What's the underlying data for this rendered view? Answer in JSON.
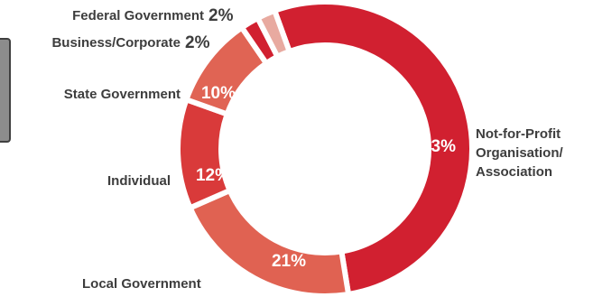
{
  "chart_data": {
    "type": "pie",
    "donut": true,
    "title": "",
    "categories": [
      "Not-for-Profit Organisation/ Association",
      "Local Government",
      "Individual",
      "State Government",
      "Business/Corporate",
      "Federal Government"
    ],
    "values": [
      53,
      21,
      12,
      10,
      2,
      2
    ],
    "value_labels": [
      "53%",
      "21%",
      "12%",
      "10%",
      "2%",
      "2%"
    ],
    "colors": [
      "#d12030",
      "#e06252",
      "#d93a3a",
      "#e06454",
      "#d12030",
      "#e8aaa0"
    ],
    "label_lines": [
      [
        "Not-for-Profit",
        "Organisation/",
        "Association"
      ],
      [
        "Local Government"
      ],
      [
        "Individual"
      ],
      [
        "State Government"
      ],
      [
        "Business/Corporate"
      ],
      [
        "Federal Government"
      ]
    ],
    "legend": "none"
  }
}
